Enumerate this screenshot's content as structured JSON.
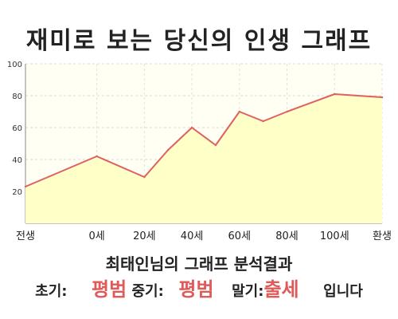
{
  "title": "재미로 보는 당신의 인생 그래프",
  "chart_data": {
    "type": "area",
    "x_ticks": [
      "전생",
      "0세",
      "20세",
      "40세",
      "60세",
      "80세",
      "100세",
      "환생"
    ],
    "y_ticks": [
      "20",
      "40",
      "60",
      "80",
      "100"
    ],
    "ylim": [
      0,
      100
    ],
    "x": [
      -30,
      0,
      20,
      30,
      40,
      50,
      60,
      70,
      80,
      100,
      120
    ],
    "y": [
      23,
      42,
      29,
      46,
      60,
      49,
      70,
      64,
      70,
      81,
      79
    ],
    "grid": true,
    "colors": {
      "line": "#e06060",
      "fill": "#ffffc8"
    }
  },
  "summary": {
    "headline": "최태인님의 그래프 분석결과",
    "early_label": "초기:",
    "early_result": "평범",
    "mid_label": "중기:",
    "mid_result": "평범",
    "late_label": "말기:",
    "late_result": "출세",
    "ending": "입니다"
  }
}
